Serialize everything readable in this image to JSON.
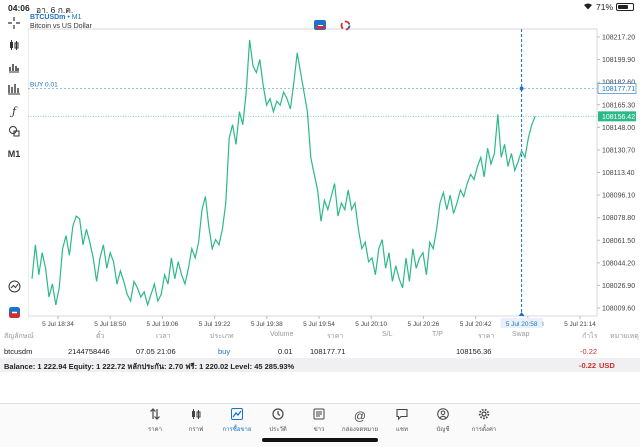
{
  "status_bar": {
    "time": "04:06",
    "date": "อา. 6 ก.ค.",
    "battery": "71%",
    "battery_level": 0.71,
    "wifi_icon": "wifi-icon"
  },
  "toolbar": {
    "items": [
      "crosshair-icon",
      "candlestick-icon",
      "bar-chart-icon",
      "indicators-icon",
      "function-icon",
      "objects-icon"
    ],
    "timeframe": "M1"
  },
  "chart": {
    "symbol": "BTCUSDm",
    "separator": " • ",
    "timeframe": "M1",
    "description": "Bitcoin vs US Dollar",
    "buy_label": "BUY 0.01",
    "colors": {
      "line": "#2db88a",
      "buy_line": "#1a73c8",
      "grid": "#e8e8e8",
      "price_tag": "#2db88a"
    }
  },
  "chart_data": {
    "type": "line",
    "x_ticks": [
      "5 Jul 18:34",
      "5 Jul 18:50",
      "5 Jul 19:06",
      "5 Jul 19:22",
      "5 Jul 19:38",
      "5 Jul 19:54",
      "5 Jul 20:10",
      "5 Jul 20:26",
      "5 Jul 20:42",
      "5 Jul 20:58",
      "5 Jul 21:14"
    ],
    "y_ticks": [
      "108217.20",
      "108199.90",
      "108182.60",
      "108165.30",
      "108148.00",
      "108130.70",
      "108113.40",
      "108096.10",
      "108078.80",
      "108061.50",
      "108044.20",
      "108026.90",
      "108009.60"
    ],
    "ylim": [
      108009.6,
      108217.2
    ],
    "xlim": [
      0,
      165
    ],
    "current_price": "108156.42",
    "current_price_value": 108156.42,
    "buy_price": "108177.71",
    "buy_price_value": 108177.71,
    "cursor_x_label": "5 Jul 20:58",
    "cursor_x": 144,
    "values": [
      108032,
      108058,
      108035,
      108052,
      108040,
      108018,
      108028,
      108012,
      108025,
      108055,
      108065,
      108050,
      108072,
      108080,
      108078,
      108058,
      108070,
      108060,
      108048,
      108030,
      108048,
      108058,
      108040,
      108052,
      108045,
      108028,
      108038,
      108030,
      108020,
      108015,
      108030,
      108025,
      108018,
      108022,
      108012,
      108020,
      108028,
      108015,
      108020,
      108035,
      108028,
      108048,
      108032,
      108045,
      108035,
      108028,
      108040,
      108055,
      108048,
      108060,
      108085,
      108095,
      108072,
      108055,
      108062,
      108058,
      108070,
      108090,
      108140,
      108150,
      108135,
      108160,
      108150,
      108175,
      108215,
      108195,
      108190,
      108200,
      108180,
      108165,
      108170,
      108160,
      108168,
      108165,
      108175,
      108170,
      108162,
      108182,
      108205,
      108190,
      108175,
      108160,
      108125,
      108112,
      108100,
      108076,
      108092,
      108085,
      108095,
      108105,
      108080,
      108090,
      108085,
      108100,
      108085,
      108090,
      108070,
      108055,
      108060,
      108045,
      108048,
      108035,
      108055,
      108062,
      108040,
      108052,
      108030,
      108042,
      108032,
      108025,
      108048,
      108030,
      108055,
      108040,
      108048,
      108052,
      108035,
      108060,
      108055,
      108070,
      108090,
      108098,
      108085,
      108096,
      108082,
      108090,
      108100,
      108095,
      108105,
      108112,
      108108,
      108118,
      108125,
      108110,
      108132,
      108120,
      108128,
      108158,
      108125,
      108135,
      108118,
      108128,
      108115,
      108122,
      108130,
      108125,
      108140,
      108150,
      108156.42
    ]
  },
  "trades": {
    "headers": [
      "สัญลักษณ์",
      "ตั๋ว",
      "เวลา",
      "ประเภท",
      "Volume",
      "ราคา",
      "S/L",
      "T/P",
      "ราคา",
      "Swap",
      "กำไร",
      "หมายเหตุ"
    ],
    "rows": [
      {
        "symbol": "btcusdm",
        "ticket": "2144758446",
        "time": "07.05 21:06",
        "type": "buy",
        "volume": "0.01",
        "price": "108177.71",
        "sl": "",
        "tp": "",
        "current": "108156.36",
        "swap": "",
        "profit": "-0.22",
        "comment": ""
      }
    ],
    "balance_text": "Balance: 1 222.94 Equity: 1 222.72 หลักประกัน: 2.70 ฟรี: 1 220.02 Level: 45 285.93%",
    "total_profit": "-0.22",
    "currency": "USD"
  },
  "tabs": [
    {
      "label": "ราคา",
      "icon": "arrows-updown-icon"
    },
    {
      "label": "กราฟ",
      "icon": "candles-icon"
    },
    {
      "label": "การซื้อขาย",
      "icon": "trade-chart-icon",
      "active": true
    },
    {
      "label": "ประวัติ",
      "icon": "history-icon"
    },
    {
      "label": "ข่าว",
      "icon": "news-icon"
    },
    {
      "label": "กล่องจดหมาย",
      "icon": "at-icon"
    },
    {
      "label": "แชท",
      "icon": "chat-icon"
    },
    {
      "label": "บัญชี",
      "icon": "account-icon"
    },
    {
      "label": "การตั้งค่า",
      "icon": "settings-icon"
    }
  ]
}
